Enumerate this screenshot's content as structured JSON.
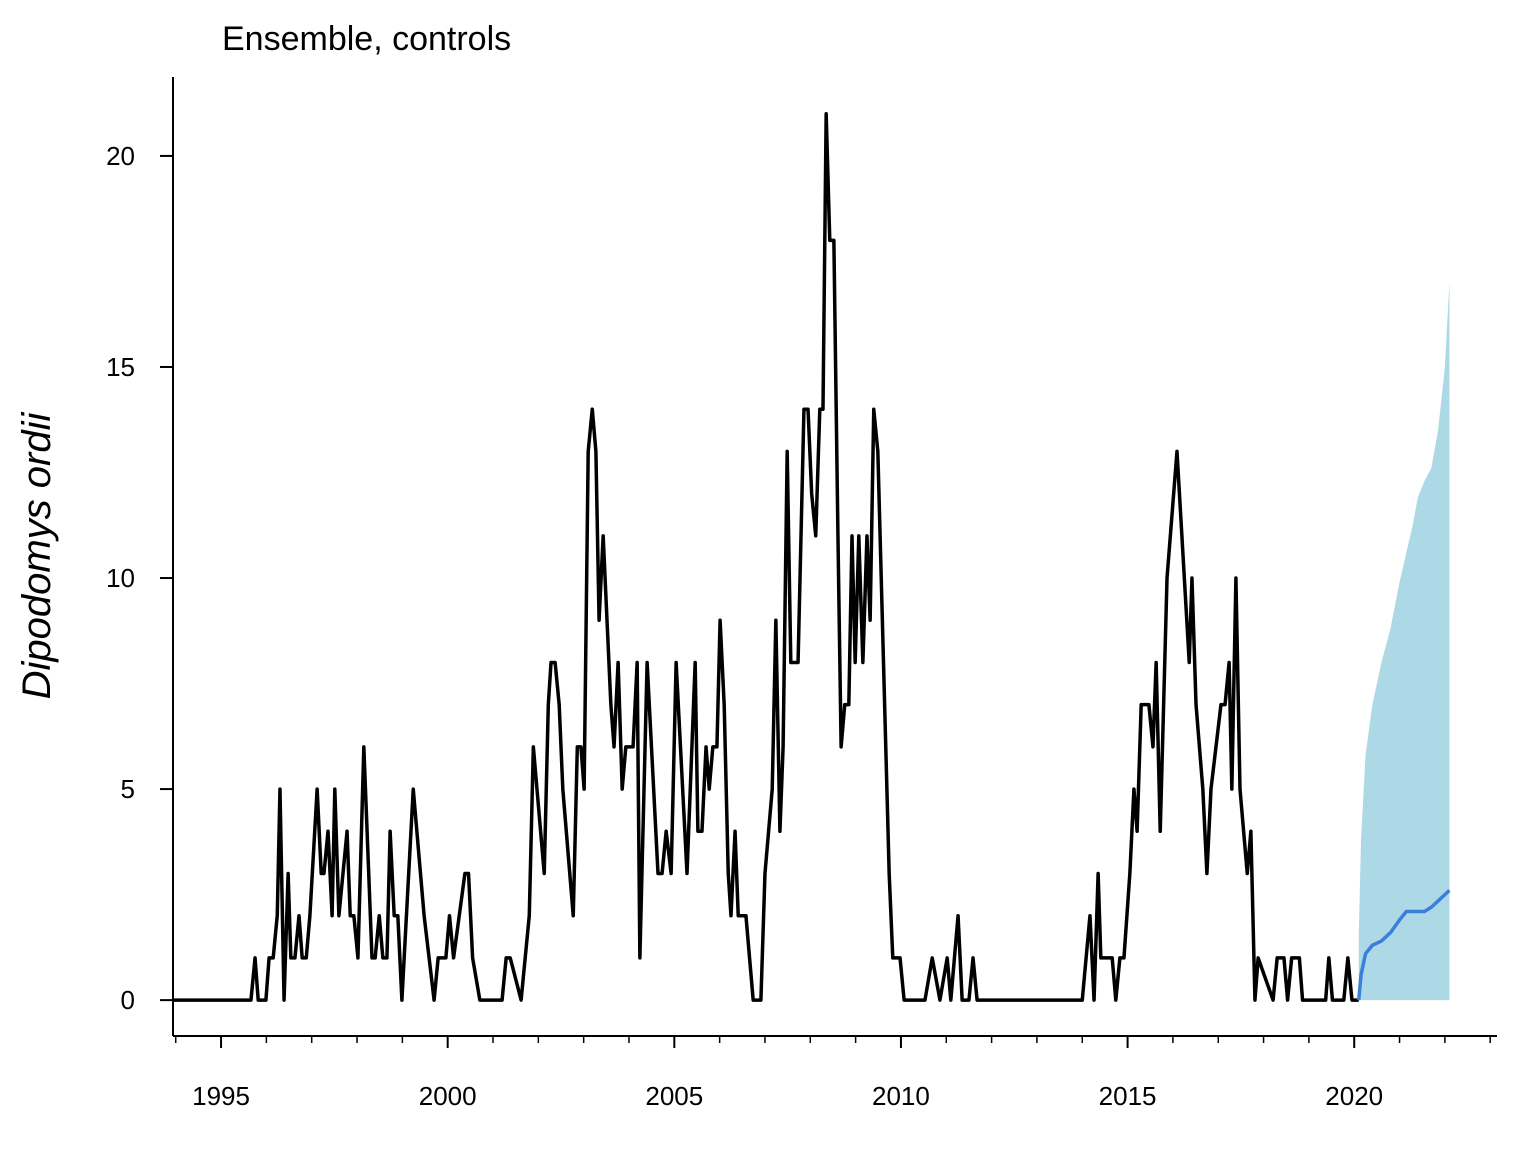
{
  "chart_data": {
    "type": "line",
    "title": "Ensemble, controls",
    "y_label": "Dipodomys ordii",
    "xlim": [
      1993.94,
      2023.15
    ],
    "ylim": [
      -0.85,
      21.87
    ],
    "xticks": [
      1995,
      2000,
      2005,
      2010,
      2015,
      2020
    ],
    "xticks_minor": [
      1994,
      1996,
      1997,
      1998,
      1999,
      2001,
      2002,
      2003,
      2004,
      2006,
      2007,
      2008,
      2009,
      2011,
      2012,
      2013,
      2014,
      2016,
      2017,
      2018,
      2019,
      2021,
      2022,
      2023
    ],
    "yticks": [
      0,
      5,
      10,
      15,
      20
    ],
    "band": {
      "color": "#add8e6",
      "x": [
        2020.1,
        2020.15,
        2020.25,
        2020.4,
        2020.6,
        2020.8,
        2021.0,
        2021.15,
        2021.3,
        2021.4,
        2021.55,
        2021.7,
        2021.85,
        2022.0,
        2022.1
      ],
      "lower": [
        0,
        0,
        0,
        0,
        0,
        0,
        0,
        0,
        0,
        0,
        0,
        0,
        0,
        0,
        0
      ],
      "upper": [
        1.5,
        3.8,
        5.8,
        7.0,
        8.0,
        8.8,
        9.9,
        10.6,
        11.3,
        11.9,
        12.3,
        12.6,
        13.5,
        15.0,
        17.0
      ]
    },
    "series": [
      {
        "color": "#000000",
        "x": [
          1993.94,
          1995.66,
          1995.75,
          1995.82,
          1995.99,
          1996.06,
          1996.15,
          1996.24,
          1996.3,
          1996.39,
          1996.48,
          1996.54,
          1996.63,
          1996.72,
          1996.79,
          1996.88,
          1996.96,
          1997.12,
          1997.21,
          1997.27,
          1997.36,
          1997.45,
          1997.51,
          1997.6,
          1997.78,
          1997.85,
          1997.93,
          1998.02,
          1998.15,
          1998.33,
          1998.4,
          1998.49,
          1998.57,
          1998.66,
          1998.73,
          1998.82,
          1998.9,
          1998.99,
          1999.24,
          1999.48,
          1999.7,
          1999.79,
          1999.96,
          2000.04,
          2000.13,
          2000.38,
          2000.46,
          2000.55,
          2000.71,
          2001.2,
          2001.29,
          2001.38,
          2001.62,
          2001.8,
          2001.89,
          2002.13,
          2002.22,
          2002.28,
          2002.37,
          2002.46,
          2002.54,
          2002.77,
          2002.86,
          2002.94,
          2003.01,
          2003.1,
          2003.19,
          2003.27,
          2003.34,
          2003.43,
          2003.6,
          2003.67,
          2003.76,
          2003.85,
          2003.93,
          2004.09,
          2004.18,
          2004.24,
          2004.4,
          2004.64,
          2004.73,
          2004.82,
          2004.93,
          2005.04,
          2005.28,
          2005.46,
          2005.52,
          2005.61,
          2005.7,
          2005.77,
          2005.85,
          2005.94,
          2006.01,
          2006.1,
          2006.19,
          2006.25,
          2006.34,
          2006.41,
          2006.58,
          2006.74,
          2006.91,
          2007.0,
          2007.16,
          2007.24,
          2007.33,
          2007.4,
          2007.49,
          2007.57,
          2007.66,
          2007.73,
          2007.86,
          2007.95,
          2008.03,
          2008.12,
          2008.21,
          2008.28,
          2008.35,
          2008.43,
          2008.52,
          2008.61,
          2008.68,
          2008.76,
          2008.85,
          2008.92,
          2008.99,
          2009.07,
          2009.16,
          2009.25,
          2009.32,
          2009.4,
          2009.49,
          2009.74,
          2009.82,
          2009.98,
          2010.07,
          2010.53,
          2010.69,
          2010.86,
          2011.02,
          2011.1,
          2011.26,
          2011.35,
          2011.5,
          2011.59,
          2011.68,
          2014.0,
          2014.17,
          2014.26,
          2014.35,
          2014.41,
          2014.66,
          2014.74,
          2014.83,
          2014.92,
          2015.05,
          2015.14,
          2015.21,
          2015.3,
          2015.47,
          2015.56,
          2015.63,
          2015.72,
          2015.87,
          2016.09,
          2016.36,
          2016.42,
          2016.51,
          2016.66,
          2016.75,
          2016.84,
          2017.06,
          2017.15,
          2017.24,
          2017.3,
          2017.39,
          2017.48,
          2017.64,
          2017.72,
          2017.81,
          2017.88,
          2018.21,
          2018.3,
          2018.45,
          2018.53,
          2018.62,
          2018.79,
          2018.86,
          2019.37,
          2019.44,
          2019.52,
          2019.77,
          2019.86,
          2019.95,
          2020.1
        ],
        "values": [
          0,
          0,
          1,
          0,
          0,
          1,
          1,
          2,
          5,
          0,
          3,
          1,
          1,
          2,
          1,
          1,
          2,
          5,
          3,
          3,
          4,
          2,
          5,
          2,
          4,
          2,
          2,
          1,
          6,
          1,
          1,
          2,
          1,
          1,
          4,
          2,
          2,
          0,
          5,
          2,
          0,
          1,
          1,
          2,
          1,
          3,
          3,
          1,
          0,
          0,
          1,
          1,
          0,
          2,
          6,
          3,
          7,
          8,
          8,
          7,
          5,
          2,
          6,
          6,
          5,
          13,
          14,
          13,
          9,
          11,
          7,
          6,
          8,
          5,
          6,
          6,
          8,
          1,
          8,
          3,
          3,
          4,
          3,
          8,
          3,
          8,
          4,
          4,
          6,
          5,
          6,
          6,
          9,
          7,
          3,
          2,
          4,
          2,
          2,
          0,
          0,
          3,
          5,
          9,
          4,
          6,
          13,
          8,
          8,
          8,
          14,
          14,
          12,
          11,
          14,
          14,
          21,
          18,
          18,
          11,
          6,
          7,
          7,
          11,
          8,
          11,
          8,
          11,
          9,
          14,
          13,
          3,
          1,
          1,
          0,
          0,
          1,
          0,
          1,
          0,
          2,
          0,
          0,
          1,
          0,
          0,
          2,
          0,
          3,
          1,
          1,
          0,
          1,
          1,
          3,
          5,
          4,
          7,
          7,
          6,
          8,
          4,
          10,
          13,
          8,
          10,
          7,
          5,
          3,
          5,
          7,
          7,
          8,
          5,
          10,
          5,
          3,
          4,
          0,
          1,
          0,
          1,
          1,
          0,
          1,
          1,
          0,
          0,
          1,
          0,
          0,
          1,
          0,
          0
        ]
      },
      {
        "color": "#3a7fdc",
        "x": [
          2020.1,
          2020.15,
          2020.25,
          2020.4,
          2020.6,
          2020.8,
          2021.0,
          2021.15,
          2021.3,
          2021.4,
          2021.55,
          2021.7,
          2021.85,
          2022.0,
          2022.1
        ],
        "values": [
          0,
          0.6,
          1.1,
          1.3,
          1.4,
          1.6,
          1.9,
          2.1,
          2.1,
          2.1,
          2.1,
          2.2,
          2.35,
          2.5,
          2.6
        ]
      }
    ]
  }
}
